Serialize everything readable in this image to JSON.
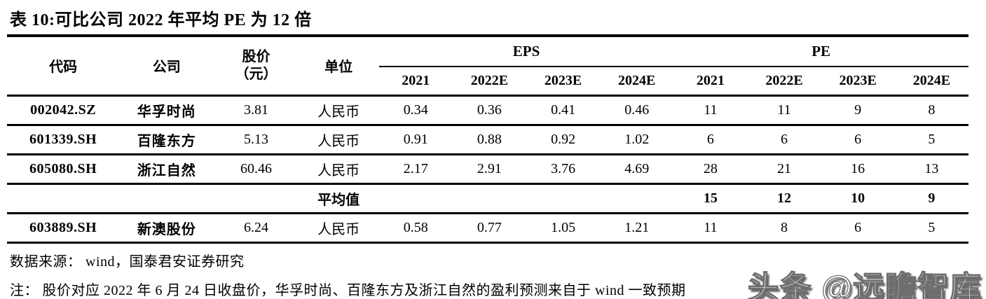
{
  "title": "表 10:可比公司 2022 年平均 PE 为 12 倍",
  "table": {
    "headers": {
      "code": "代码",
      "company": "公司",
      "price": "股价",
      "price_unit": "（元）",
      "unit": "单位",
      "eps_group": "EPS",
      "pe_group": "PE",
      "years": [
        "2021",
        "2022E",
        "2023E",
        "2024E"
      ]
    },
    "rows": [
      {
        "code": "002042.SZ",
        "company": "华孚时尚",
        "price": "3.81",
        "unit": "人民币",
        "eps": [
          "0.34",
          "0.36",
          "0.41",
          "0.46"
        ],
        "pe": [
          "11",
          "11",
          "9",
          "8"
        ]
      },
      {
        "code": "601339.SH",
        "company": "百隆东方",
        "price": "5.13",
        "unit": "人民币",
        "eps": [
          "0.91",
          "0.88",
          "0.92",
          "1.02"
        ],
        "pe": [
          "6",
          "6",
          "6",
          "5"
        ]
      },
      {
        "code": "605080.SH",
        "company": "浙江自然",
        "price": "60.46",
        "unit": "人民币",
        "eps": [
          "2.17",
          "2.91",
          "3.76",
          "4.69"
        ],
        "pe": [
          "28",
          "21",
          "16",
          "13"
        ]
      },
      {
        "code": "",
        "company": "",
        "price": "",
        "unit": "平均值",
        "eps": [
          "",
          "",
          "",
          ""
        ],
        "pe": [
          "15",
          "12",
          "10",
          "9"
        ]
      },
      {
        "code": "603889.SH",
        "company": "新澳股份",
        "price": "6.24",
        "unit": "人民币",
        "eps": [
          "0.58",
          "0.77",
          "1.05",
          "1.21"
        ],
        "pe": [
          "11",
          "8",
          "6",
          "5"
        ]
      }
    ]
  },
  "footer": {
    "source": "数据来源： wind，国泰君安证券研究",
    "note": "注： 股价对应 2022 年 6 月 24 日收盘价，华孚时尚、百隆东方及浙江自然的盈利预测来自于 wind 一致预期"
  },
  "watermark": {
    "text": "头条 @远瞻智库"
  }
}
